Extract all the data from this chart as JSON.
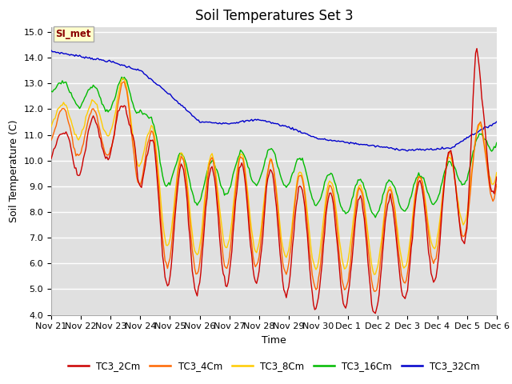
{
  "title": "Soil Temperatures Set 3",
  "xlabel": "Time",
  "ylabel": "Soil Temperature (C)",
  "ylim": [
    4.0,
    15.2
  ],
  "yticks": [
    4.0,
    5.0,
    6.0,
    7.0,
    8.0,
    9.0,
    10.0,
    11.0,
    12.0,
    13.0,
    14.0,
    15.0
  ],
  "xtick_labels": [
    "Nov 21",
    "Nov 22",
    "Nov 23",
    "Nov 24",
    "Nov 25",
    "Nov 26",
    "Nov 27",
    "Nov 28",
    "Nov 29",
    "Nov 30",
    "Dec 1",
    "Dec 2",
    "Dec 3",
    "Dec 4",
    "Dec 5",
    "Dec 6"
  ],
  "series_colors": {
    "TC3_2Cm": "#cc0000",
    "TC3_4Cm": "#ff6600",
    "TC3_8Cm": "#ffcc00",
    "TC3_16Cm": "#00bb00",
    "TC3_32Cm": "#0000cc"
  },
  "annotation_text": "SI_met",
  "annotation_color": "#8B0000",
  "annotation_bg": "#ffffcc",
  "bg_color": "#e0e0e0",
  "grid_color": "#ffffff",
  "title_fontsize": 12,
  "label_fontsize": 9,
  "tick_fontsize": 8
}
